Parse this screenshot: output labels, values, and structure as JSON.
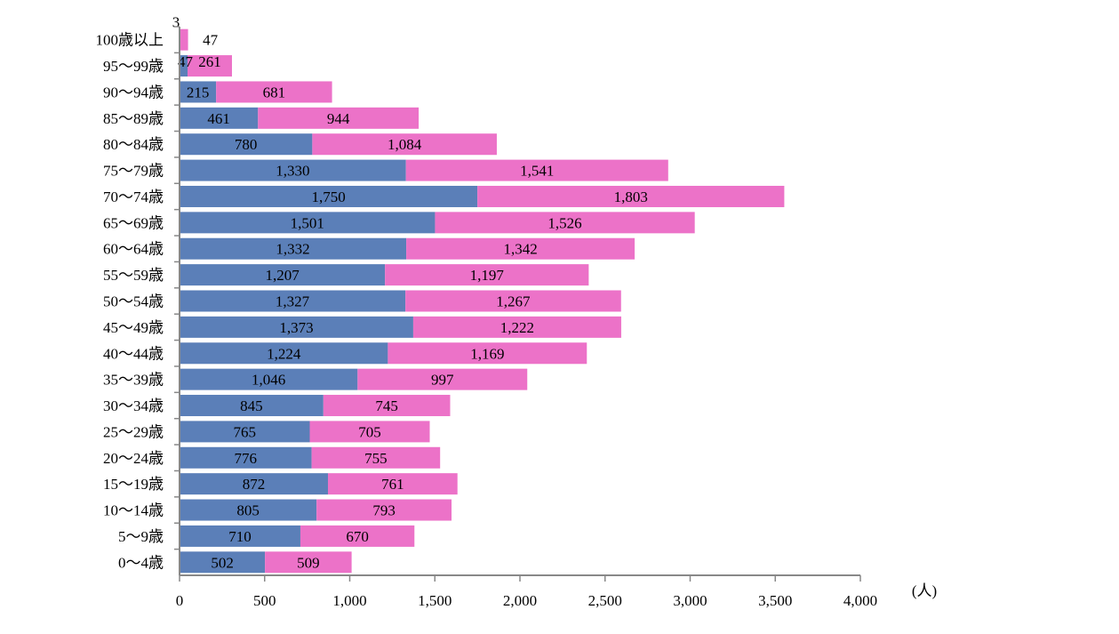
{
  "chart_data": {
    "type": "bar",
    "orientation": "horizontal",
    "stacked": true,
    "categories": [
      "100歳以上",
      "95〜99歳",
      "90〜94歳",
      "85〜89歳",
      "80〜84歳",
      "75〜79歳",
      "70〜74歳",
      "65〜69歳",
      "60〜64歳",
      "55〜59歳",
      "50〜54歳",
      "45〜49歳",
      "40〜44歳",
      "35〜39歳",
      "30〜34歳",
      "25〜29歳",
      "20〜24歳",
      "15〜19歳",
      "10〜14歳",
      "5〜9歳",
      "0〜4歳"
    ],
    "series": [
      {
        "color": "#5b7fb8",
        "values": [
          3,
          47,
          215,
          461,
          780,
          1330,
          1750,
          1501,
          1332,
          1207,
          1327,
          1373,
          1224,
          1046,
          845,
          765,
          776,
          872,
          805,
          710,
          502
        ]
      },
      {
        "color": "#ec72c8",
        "values": [
          47,
          261,
          681,
          944,
          1084,
          1541,
          1803,
          1526,
          1342,
          1197,
          1267,
          1222,
          1169,
          997,
          745,
          705,
          755,
          761,
          793,
          670,
          509
        ]
      }
    ],
    "series_labels": [
      [
        "3",
        "47",
        "215",
        "461",
        "780",
        "1,330",
        "1,750",
        "1,501",
        "1,332",
        "1,207",
        "1,327",
        "1,373",
        "1,224",
        "1,046",
        "845",
        "765",
        "776",
        "872",
        "805",
        "710",
        "502"
      ],
      [
        "47",
        "261",
        "681",
        "944",
        "1,084",
        "1,541",
        "1,803",
        "1,526",
        "1,342",
        "1,197",
        "1,267",
        "1,222",
        "1,169",
        "997",
        "745",
        "705",
        "755",
        "761",
        "793",
        "670",
        "509"
      ]
    ],
    "xlim": [
      0,
      4000
    ],
    "xticks": [
      0,
      500,
      1000,
      1500,
      2000,
      2500,
      3000,
      3500,
      4000
    ],
    "xtick_labels": [
      "0",
      "500",
      "1,000",
      "1,500",
      "2,000",
      "2,500",
      "3,000",
      "3,500",
      "4,000"
    ],
    "xunit": "(人)",
    "grid": false,
    "legend": "none"
  }
}
